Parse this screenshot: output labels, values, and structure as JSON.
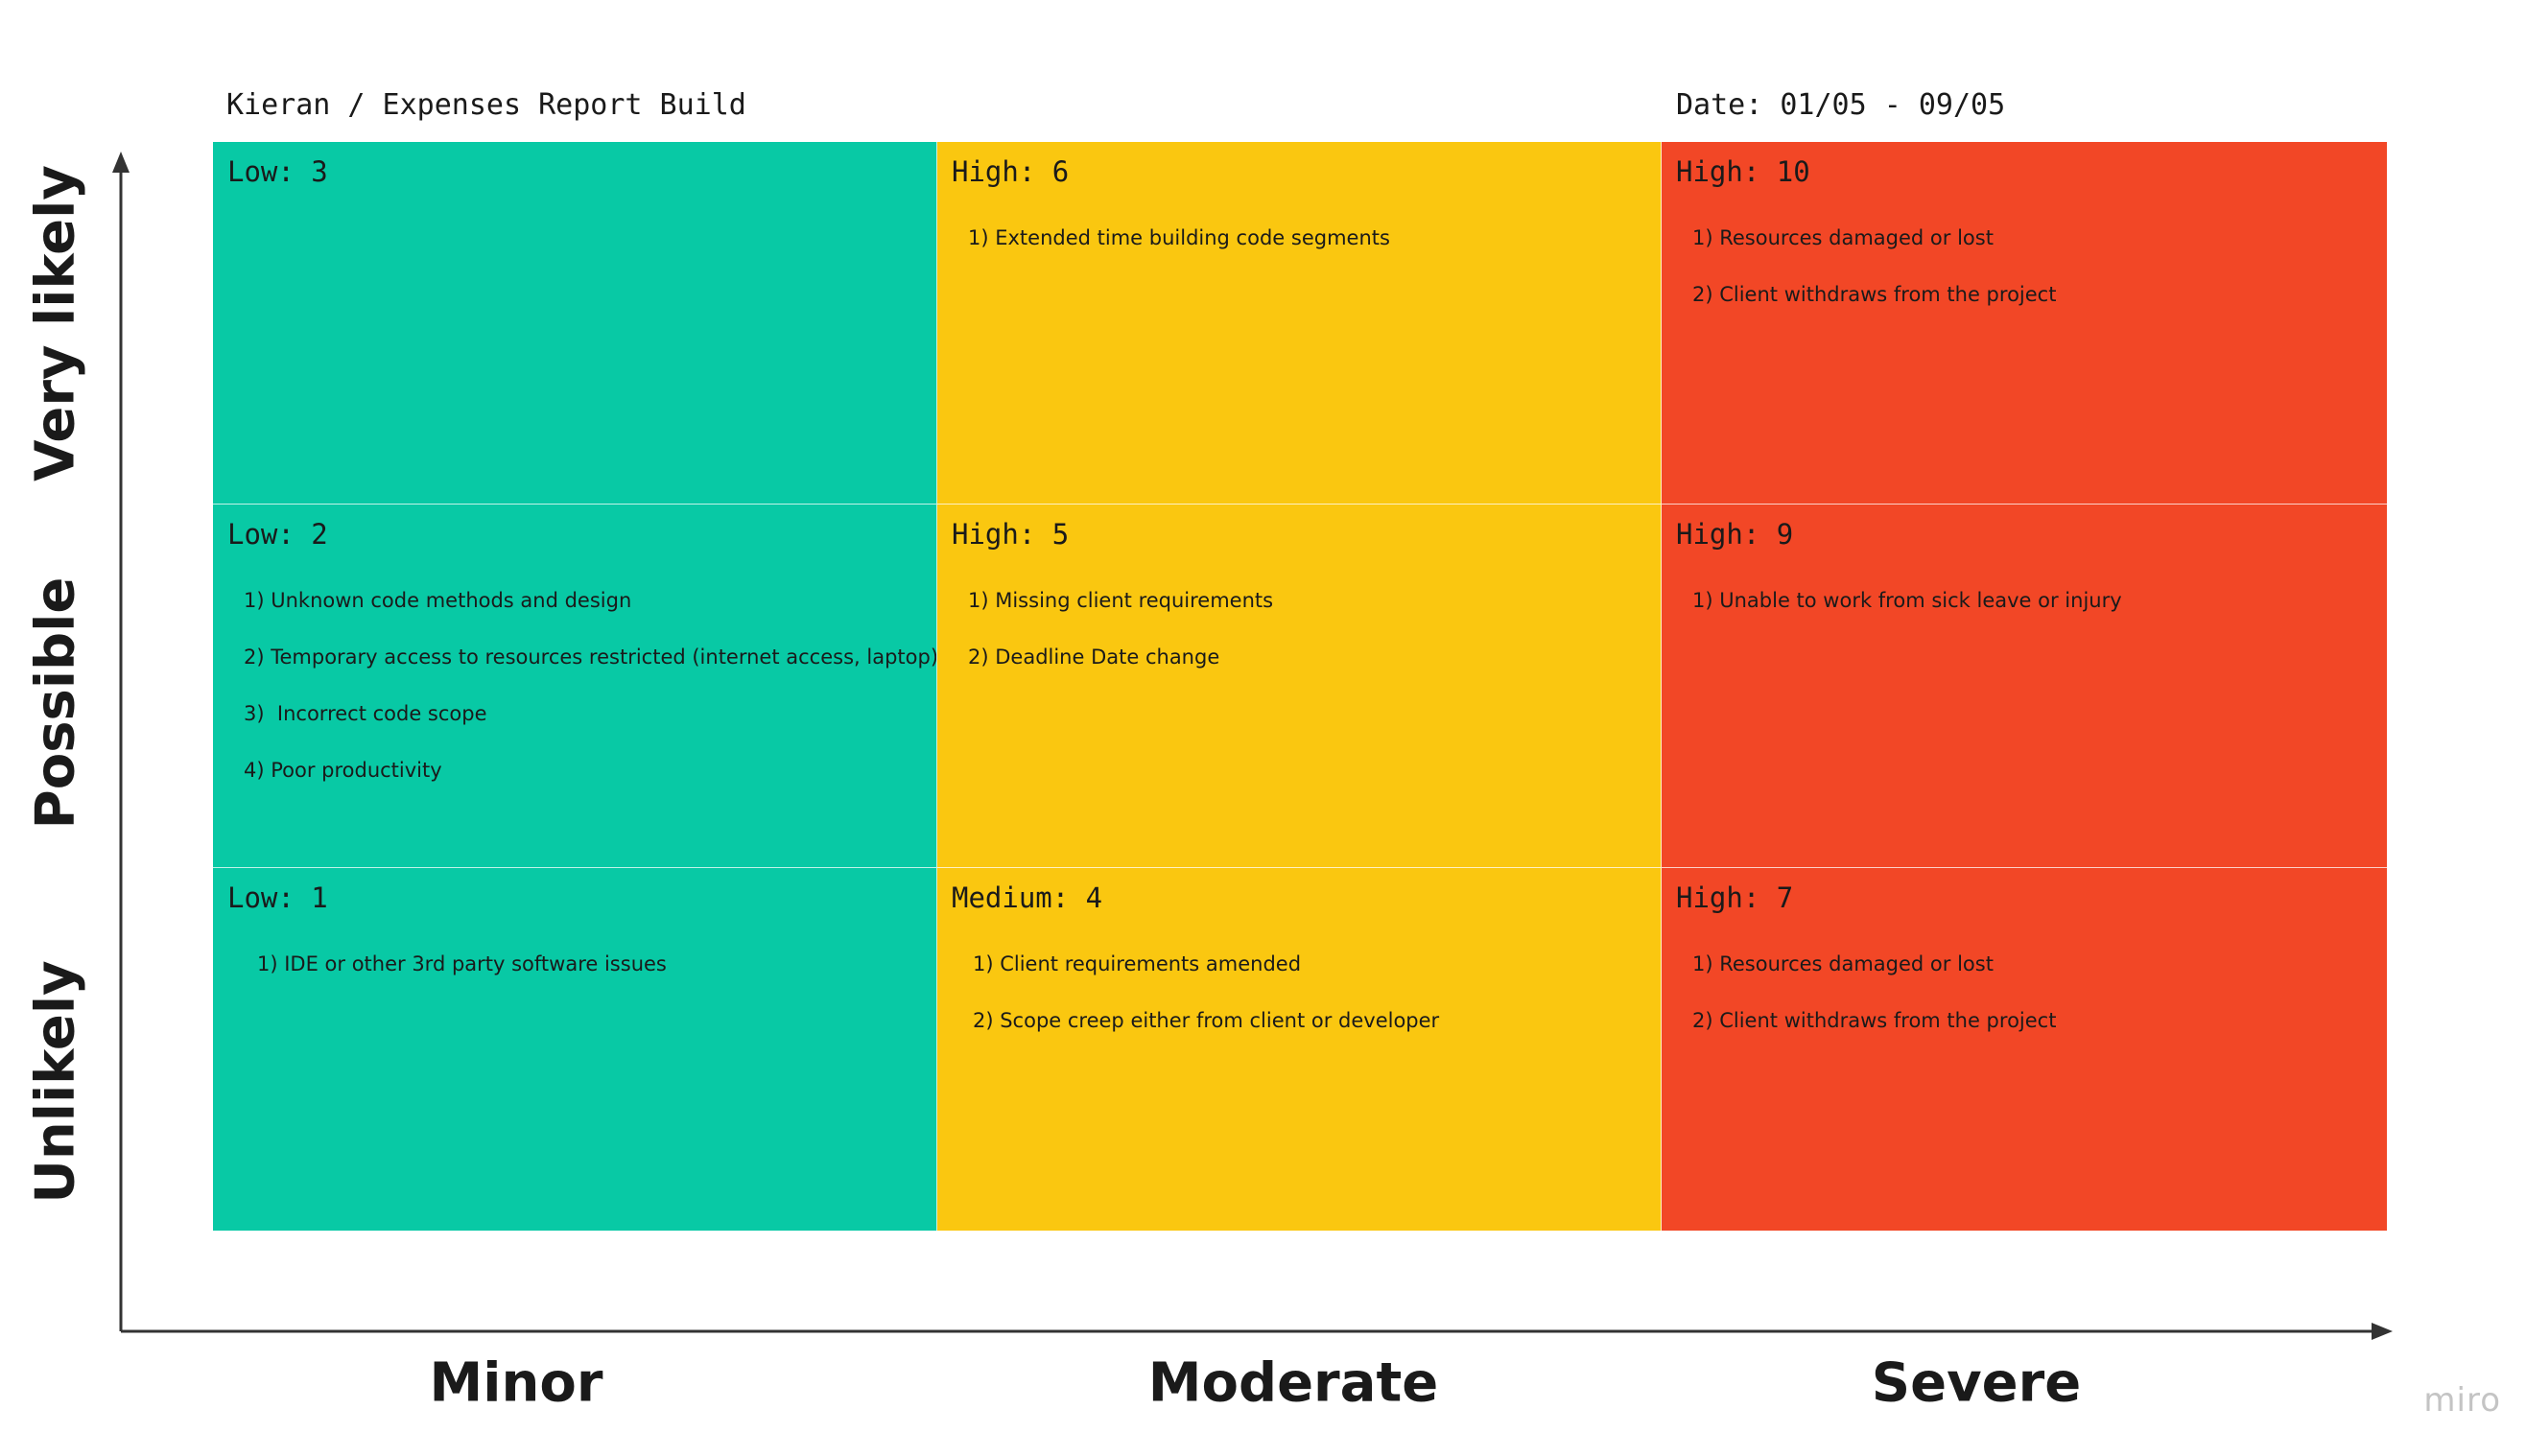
{
  "header": {
    "project_title": "Kieran / Expenses Report Build",
    "date_range": "Date: 01/05 - 09/05"
  },
  "y_axis": {
    "labels": [
      "Very likely",
      "Possible",
      "Unlikely"
    ]
  },
  "x_axis": {
    "labels": [
      "Minor",
      "Moderate",
      "Severe"
    ]
  },
  "colors": {
    "low": "#08C9A5",
    "medium_high": "#FAC710",
    "high": "#F24726",
    "axis": "#333333"
  },
  "matrix": {
    "rows": [
      {
        "likelihood": "Very likely",
        "cells": [
          {
            "title": "Low: 3",
            "level": "low",
            "items": []
          },
          {
            "title": "High: 6",
            "level": "medium_high",
            "items": [
              "1) Extended time building code segments"
            ]
          },
          {
            "title": "High: 10",
            "level": "high",
            "items": [
              "1) Resources damaged or lost",
              "2) Client withdraws from the project"
            ]
          }
        ]
      },
      {
        "likelihood": "Possible",
        "cells": [
          {
            "title": "Low: 2",
            "level": "low",
            "items": [
              "1) Unknown code methods and design",
              "2) Temporary access to resources restricted (internet access, laptop)",
              "3)  Incorrect code scope",
              "4) Poor productivity"
            ]
          },
          {
            "title": "High: 5",
            "level": "medium_high",
            "items": [
              "1) Missing client requirements",
              "2) Deadline Date change"
            ]
          },
          {
            "title": "High: 9",
            "level": "high",
            "items": [
              "1) Unable to work from sick leave or injury"
            ]
          }
        ]
      },
      {
        "likelihood": "Unlikely",
        "cells": [
          {
            "title": "Low: 1",
            "level": "low",
            "items": [
              "1) IDE or other 3rd party software issues"
            ]
          },
          {
            "title": "Medium: 4",
            "level": "medium_high",
            "items": [
              "1) Client requirements amended",
              "2) Scope creep either from client or developer"
            ]
          },
          {
            "title": "High: 7",
            "level": "high",
            "items": [
              "1) Resources damaged or lost",
              "2) Client withdraws from the project"
            ]
          }
        ]
      }
    ]
  },
  "watermark": {
    "text": "miro"
  }
}
